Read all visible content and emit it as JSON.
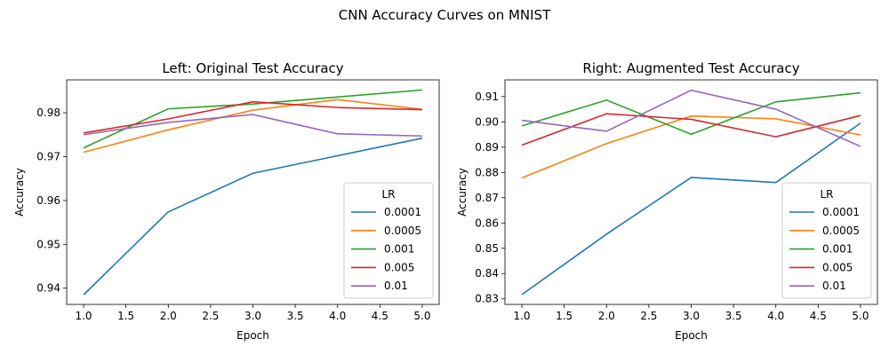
{
  "figure_title": "CNN Accuracy Curves on MNIST",
  "chart_data": [
    {
      "type": "line",
      "title": "Left: Original Test Accuracy",
      "xlabel": "Epoch",
      "ylabel": "Accuracy",
      "x": [
        1,
        2,
        3,
        4,
        5
      ],
      "xlim": [
        0.8,
        5.2
      ],
      "ylim": [
        0.9363,
        0.9875
      ],
      "xticks": [
        1.0,
        1.5,
        2.0,
        2.5,
        3.0,
        3.5,
        4.0,
        4.5,
        5.0
      ],
      "xtick_labels": [
        "1.0",
        "1.5",
        "2.0",
        "2.5",
        "3.0",
        "3.5",
        "4.0",
        "4.5",
        "5.0"
      ],
      "yticks": [
        0.94,
        0.95,
        0.96,
        0.97,
        0.98
      ],
      "ytick_labels": [
        "0.94",
        "0.95",
        "0.96",
        "0.97",
        "0.98"
      ],
      "grid": false,
      "legend": {
        "title": "LR",
        "position": "lower-right"
      },
      "series": [
        {
          "name": "0.0001",
          "color": "#1f77b4",
          "values": [
            0.9385,
            0.9574,
            0.9662,
            0.9702,
            0.9742
          ]
        },
        {
          "name": "0.0005",
          "color": "#ff7f0e",
          "values": [
            0.971,
            0.9761,
            0.9806,
            0.983,
            0.9808
          ]
        },
        {
          "name": "0.001",
          "color": "#2ca02c",
          "values": [
            0.972,
            0.9809,
            0.982,
            0.9836,
            0.9852
          ]
        },
        {
          "name": "0.005",
          "color": "#d62728",
          "values": [
            0.9754,
            0.9786,
            0.9825,
            0.9812,
            0.9807
          ]
        },
        {
          "name": "0.01",
          "color": "#9467bd",
          "values": [
            0.975,
            0.9778,
            0.9796,
            0.9752,
            0.9747
          ]
        }
      ]
    },
    {
      "type": "line",
      "title": "Right: Augmented Test Accuracy",
      "xlabel": "Epoch",
      "ylabel": "Accuracy",
      "x": [
        1,
        2,
        3,
        4,
        5
      ],
      "xlim": [
        0.8,
        5.2
      ],
      "ylim": [
        0.8278,
        0.9166
      ],
      "xticks": [
        1.0,
        1.5,
        2.0,
        2.5,
        3.0,
        3.5,
        4.0,
        4.5,
        5.0
      ],
      "xtick_labels": [
        "1.0",
        "1.5",
        "2.0",
        "2.5",
        "3.0",
        "3.5",
        "4.0",
        "4.5",
        "5.0"
      ],
      "yticks": [
        0.83,
        0.84,
        0.85,
        0.86,
        0.87,
        0.88,
        0.89,
        0.9,
        0.91
      ],
      "ytick_labels": [
        "0.83",
        "0.84",
        "0.85",
        "0.86",
        "0.87",
        "0.88",
        "0.89",
        "0.90",
        "0.91"
      ],
      "grid": false,
      "legend": {
        "title": "LR",
        "position": "lower-right"
      },
      "series": [
        {
          "name": "0.0001",
          "color": "#1f77b4",
          "values": [
            0.8317,
            0.8556,
            0.878,
            0.876,
            0.8995
          ]
        },
        {
          "name": "0.0005",
          "color": "#ff7f0e",
          "values": [
            0.8778,
            0.8914,
            0.9023,
            0.9012,
            0.8948
          ]
        },
        {
          "name": "0.001",
          "color": "#2ca02c",
          "values": [
            0.8984,
            0.9086,
            0.8951,
            0.9079,
            0.9115
          ]
        },
        {
          "name": "0.005",
          "color": "#d62728",
          "values": [
            0.8908,
            0.9032,
            0.901,
            0.8941,
            0.9025
          ]
        },
        {
          "name": "0.01",
          "color": "#9467bd",
          "values": [
            0.9006,
            0.8963,
            0.9125,
            0.905,
            0.8903
          ]
        }
      ]
    }
  ]
}
